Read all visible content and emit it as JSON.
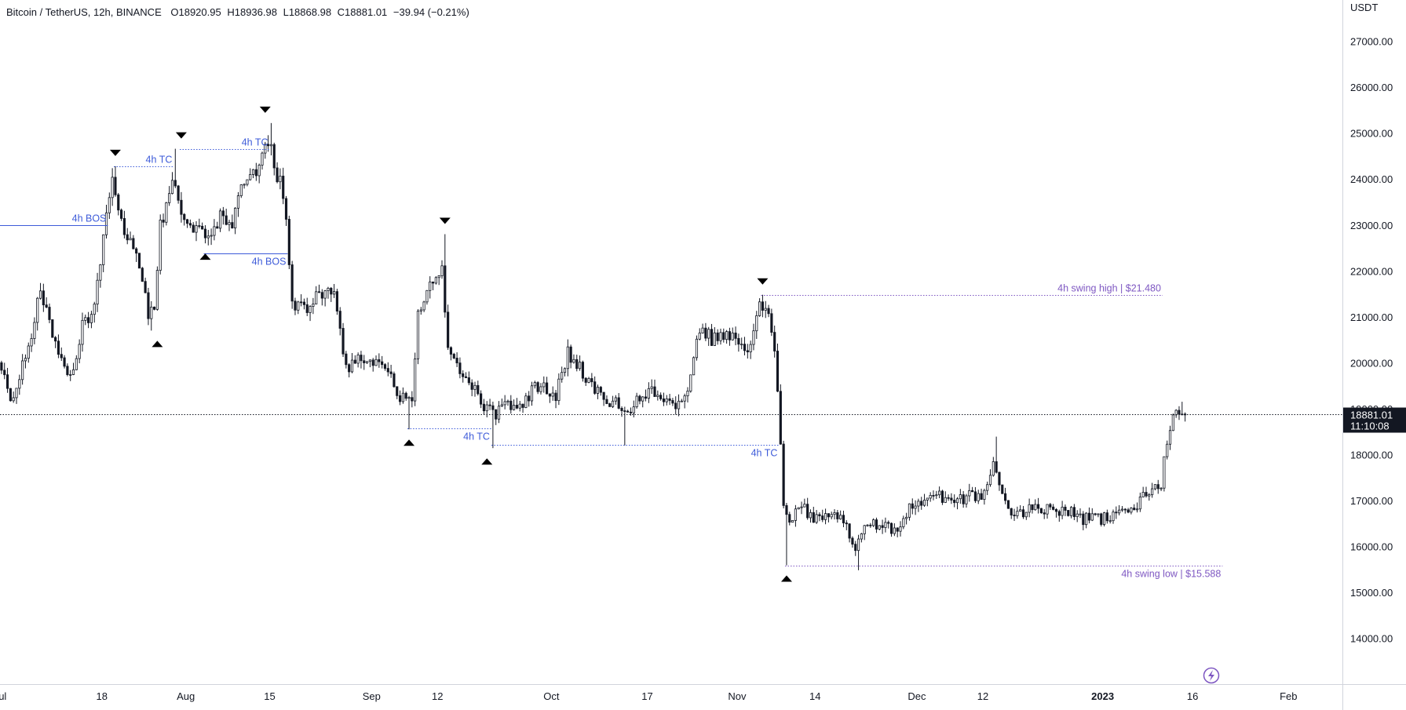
{
  "header": {
    "symbol": "Bitcoin / TetherUS, 12h, BINANCE",
    "open": "O18920.95",
    "high": "H18936.98",
    "low": "L18868.98",
    "close": "C18881.01",
    "change": "−39.94 (−0.21%)"
  },
  "price_axis": {
    "currency": "USDT"
  },
  "last_price": {
    "value": "18881.01",
    "countdown": "11:10:08"
  },
  "colors": {
    "candle": "#131722",
    "annotation_blue": "#3d5bd9",
    "swing_purple": "#7e57c2",
    "crosshair": "#131722",
    "badge_bg": "#131722",
    "badge_text": "#ffffff"
  },
  "icons": {
    "replay": "lightning-icon"
  },
  "chart_data": {
    "type": "candlestick",
    "title": "",
    "xlabel": "",
    "ylabel": "USDT",
    "y_ticks": [
      14000,
      15000,
      16000,
      17000,
      18000,
      19000,
      20000,
      21000,
      22000,
      23000,
      24000,
      25000,
      26000,
      27000
    ],
    "y_tick_labels": [
      "14000.00",
      "15000.00",
      "16000.00",
      "17000.00",
      "18000.00",
      "19000.00",
      "20000.00",
      "21000.00",
      "22000.00",
      "23000.00",
      "24000.00",
      "25000.00",
      "26000.00",
      "27000.00"
    ],
    "x_range": [
      "2022-07-01",
      "2023-02-10"
    ],
    "y_range": [
      13000,
      27900
    ],
    "x_ticks": [
      {
        "date": "2022-07-01",
        "label": "Jul",
        "bold": false
      },
      {
        "date": "2022-07-18",
        "label": "18",
        "bold": false
      },
      {
        "date": "2022-08-01",
        "label": "Aug",
        "bold": false
      },
      {
        "date": "2022-08-15",
        "label": "15",
        "bold": false
      },
      {
        "date": "2022-09-01",
        "label": "Sep",
        "bold": false
      },
      {
        "date": "2022-09-12",
        "label": "12",
        "bold": false
      },
      {
        "date": "2022-10-01",
        "label": "Oct",
        "bold": false
      },
      {
        "date": "2022-10-17",
        "label": "17",
        "bold": false
      },
      {
        "date": "2022-11-01",
        "label": "Nov",
        "bold": false
      },
      {
        "date": "2022-11-14",
        "label": "14",
        "bold": false
      },
      {
        "date": "2022-12-01",
        "label": "Dec",
        "bold": false
      },
      {
        "date": "2022-12-12",
        "label": "12",
        "bold": false
      },
      {
        "date": "2023-01-01",
        "label": "2023",
        "bold": true
      },
      {
        "date": "2023-01-16",
        "label": "16",
        "bold": false
      },
      {
        "date": "2023-02-01",
        "label": "Feb",
        "bold": false
      }
    ],
    "price_path": [
      [
        "2022-07-01",
        20000
      ],
      [
        "2022-07-03",
        19200
      ],
      [
        "2022-07-06",
        20300
      ],
      [
        "2022-07-08",
        21600
      ],
      [
        "2022-07-11",
        20100
      ],
      [
        "2022-07-13",
        19600
      ],
      [
        "2022-07-15",
        20800
      ],
      [
        "2022-07-17",
        21200
      ],
      [
        "2022-07-19",
        23200
      ],
      [
        "2022-07-20",
        24000
      ],
      [
        "2022-07-22",
        22900
      ],
      [
        "2022-07-24",
        22400
      ],
      [
        "2022-07-26",
        21100
      ],
      [
        "2022-07-27",
        21300
      ],
      [
        "2022-07-28",
        23000
      ],
      [
        "2022-07-30",
        23900
      ],
      [
        "2022-08-01",
        23200
      ],
      [
        "2022-08-03",
        22900
      ],
      [
        "2022-08-05",
        22700
      ],
      [
        "2022-08-07",
        23200
      ],
      [
        "2022-08-09",
        23000
      ],
      [
        "2022-08-11",
        24000
      ],
      [
        "2022-08-13",
        24200
      ],
      [
        "2022-08-15",
        24800
      ],
      [
        "2022-08-17",
        23900
      ],
      [
        "2022-08-18",
        23300
      ],
      [
        "2022-08-19",
        21200
      ],
      [
        "2022-08-21",
        21200
      ],
      [
        "2022-08-23",
        21400
      ],
      [
        "2022-08-26",
        21500
      ],
      [
        "2022-08-28",
        19900
      ],
      [
        "2022-08-30",
        20100
      ],
      [
        "2022-09-02",
        20000
      ],
      [
        "2022-09-04",
        19800
      ],
      [
        "2022-09-06",
        19300
      ],
      [
        "2022-09-08",
        19200
      ],
      [
        "2022-09-09",
        21000
      ],
      [
        "2022-09-11",
        21700
      ],
      [
        "2022-09-13",
        22000
      ],
      [
        "2022-09-14",
        20300
      ],
      [
        "2022-09-16",
        19800
      ],
      [
        "2022-09-18",
        19500
      ],
      [
        "2022-09-20",
        19000
      ],
      [
        "2022-09-22",
        18900
      ],
      [
        "2022-09-24",
        19100
      ],
      [
        "2022-09-26",
        19000
      ],
      [
        "2022-09-28",
        19400
      ],
      [
        "2022-09-30",
        19500
      ],
      [
        "2022-10-02",
        19300
      ],
      [
        "2022-10-04",
        20200
      ],
      [
        "2022-10-06",
        19900
      ],
      [
        "2022-10-08",
        19500
      ],
      [
        "2022-10-10",
        19200
      ],
      [
        "2022-10-12",
        19100
      ],
      [
        "2022-10-14",
        18900
      ],
      [
        "2022-10-16",
        19300
      ],
      [
        "2022-10-18",
        19400
      ],
      [
        "2022-10-20",
        19100
      ],
      [
        "2022-10-22",
        19000
      ],
      [
        "2022-10-24",
        19300
      ],
      [
        "2022-10-26",
        20800
      ],
      [
        "2022-10-28",
        20500
      ],
      [
        "2022-10-30",
        20600
      ],
      [
        "2022-11-01",
        20500
      ],
      [
        "2022-11-03",
        20300
      ],
      [
        "2022-11-05",
        21300
      ],
      [
        "2022-11-06",
        21200
      ],
      [
        "2022-11-07",
        20700
      ],
      [
        "2022-11-08",
        19500
      ],
      [
        "2022-11-09",
        17000
      ],
      [
        "2022-11-10",
        16600
      ],
      [
        "2022-11-12",
        16900
      ],
      [
        "2022-11-14",
        16600
      ],
      [
        "2022-11-17",
        16700
      ],
      [
        "2022-11-19",
        16600
      ],
      [
        "2022-11-21",
        15900
      ],
      [
        "2022-11-23",
        16500
      ],
      [
        "2022-11-25",
        16500
      ],
      [
        "2022-11-28",
        16300
      ],
      [
        "2022-11-30",
        16900
      ],
      [
        "2022-12-02",
        17000
      ],
      [
        "2022-12-05",
        17100
      ],
      [
        "2022-12-07",
        16900
      ],
      [
        "2022-12-10",
        17100
      ],
      [
        "2022-12-12",
        17000
      ],
      [
        "2022-12-14",
        17800
      ],
      [
        "2022-12-15",
        17400
      ],
      [
        "2022-12-17",
        16700
      ],
      [
        "2022-12-20",
        16800
      ],
      [
        "2022-12-23",
        16800
      ],
      [
        "2022-12-26",
        16800
      ],
      [
        "2022-12-29",
        16600
      ],
      [
        "2023-01-01",
        16600
      ],
      [
        "2023-01-03",
        16700
      ],
      [
        "2023-01-05",
        16800
      ],
      [
        "2023-01-07",
        16900
      ],
      [
        "2023-01-09",
        17200
      ],
      [
        "2023-01-11",
        17400
      ],
      [
        "2023-01-12",
        18300
      ],
      [
        "2023-01-13",
        18900
      ],
      [
        "2023-01-14",
        18880
      ]
    ],
    "wick_extremes": [
      [
        "2022-07-20",
        24280,
        "high"
      ],
      [
        "2022-07-26",
        20700,
        "low"
      ],
      [
        "2022-07-30",
        24660,
        "high"
      ],
      [
        "2022-08-04",
        22600,
        "low"
      ],
      [
        "2022-08-15",
        25220,
        "high"
      ],
      [
        "2022-09-07",
        18550,
        "low"
      ],
      [
        "2022-09-13",
        22800,
        "high"
      ],
      [
        "2022-09-21",
        18140,
        "low"
      ],
      [
        "2022-10-13",
        18200,
        "low"
      ],
      [
        "2022-11-05",
        21480,
        "high"
      ],
      [
        "2022-11-09",
        15588,
        "low"
      ],
      [
        "2022-11-21",
        15480,
        "low"
      ],
      [
        "2022-12-14",
        18390,
        "high"
      ],
      [
        "2023-01-14",
        19150,
        "high"
      ]
    ],
    "swing_markers": [
      {
        "date": "2022-07-20",
        "kind": "high"
      },
      {
        "date": "2022-07-27",
        "kind": "low"
      },
      {
        "date": "2022-07-31",
        "kind": "high"
      },
      {
        "date": "2022-08-04",
        "kind": "low"
      },
      {
        "date": "2022-08-14",
        "kind": "high"
      },
      {
        "date": "2022-09-07",
        "kind": "low"
      },
      {
        "date": "2022-09-13",
        "kind": "high"
      },
      {
        "date": "2022-09-20",
        "kind": "low"
      },
      {
        "date": "2022-11-05",
        "kind": "high"
      },
      {
        "date": "2022-11-09",
        "kind": "low"
      }
    ],
    "annotations": [
      {
        "label": "4h BOS",
        "price": 22990,
        "from": "2022-07-01",
        "to": "2022-07-19",
        "style": "solid",
        "color": "blue",
        "label_pos": "above-end"
      },
      {
        "label": "4h TC",
        "price": 24280,
        "from": "2022-07-20",
        "to": "2022-07-30",
        "style": "dotted",
        "color": "blue",
        "label_pos": "above-end"
      },
      {
        "label": "4h TC",
        "price": 24650,
        "from": "2022-07-31",
        "to": "2022-08-15",
        "style": "dotted",
        "color": "blue",
        "label_pos": "above-end"
      },
      {
        "label": "4h BOS",
        "price": 22380,
        "from": "2022-08-04",
        "to": "2022-08-18",
        "style": "solid",
        "color": "blue",
        "label_pos": "below-end"
      },
      {
        "label": "4h TC",
        "price": 18570,
        "from": "2022-09-07",
        "to": "2022-09-21",
        "style": "dotted",
        "color": "blue",
        "label_pos": "below-end"
      },
      {
        "label": "4h TC",
        "price": 18220,
        "from": "2022-09-21",
        "to": "2022-11-08",
        "style": "dotted",
        "color": "blue",
        "label_pos": "below-end"
      },
      {
        "label": "4h swing high | $21.480",
        "price": 21480,
        "from": "2022-11-05",
        "to": "2023-01-11",
        "style": "dotted",
        "color": "purple",
        "label_pos": "above-end"
      },
      {
        "label": "4h swing low | $15.588",
        "price": 15588,
        "from": "2022-11-09",
        "to": "2023-01-21",
        "style": "dotted",
        "color": "purple",
        "label_pos": "below-end"
      }
    ],
    "last_price_line": 18881.01
  }
}
